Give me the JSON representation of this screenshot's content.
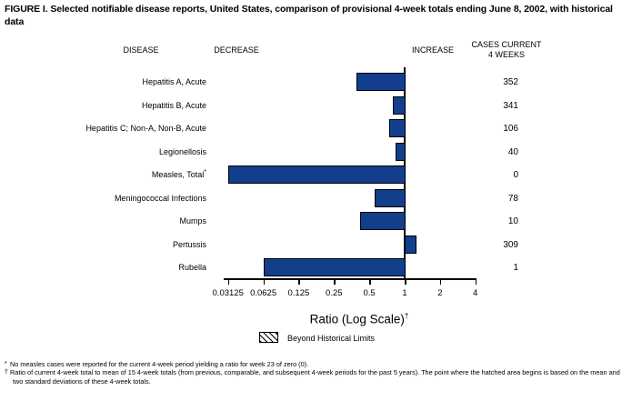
{
  "figure": {
    "title": "FIGURE I. Selected notifiable disease reports, United States, comparison of provisional 4-week totals ending June 8, 2002, with historical data"
  },
  "headers": {
    "disease": "DISEASE",
    "decrease": "DECREASE",
    "increase": "INCREASE",
    "cases_line1": "CASES CURRENT",
    "cases_line2": "4 WEEKS"
  },
  "chart_data": {
    "type": "bar",
    "orientation": "horizontal",
    "scale": "log2",
    "title": "FIGURE I. Selected notifiable disease reports, United States, comparison of provisional 4-week totals ending June 8, 2002, with historical data",
    "xlabel": "Ratio (Log Scale)",
    "xlabel_superscript": "†",
    "xlim": [
      0.03125,
      4
    ],
    "baseline": 1,
    "axis_ticks": [
      "0.03125",
      "0.0625",
      "0.125",
      "0.25",
      "0.5",
      "1",
      "2",
      "4"
    ],
    "bar_color": "#123e8c",
    "rows": [
      {
        "disease": "Hepatitis A, Acute",
        "superscript": "",
        "ratio": 0.39,
        "cases": "352"
      },
      {
        "disease": "Hepatitis B, Acute",
        "superscript": "",
        "ratio": 0.79,
        "cases": "341"
      },
      {
        "disease": "Hepatitis C; Non-A, Non-B, Acute",
        "superscript": "",
        "ratio": 0.74,
        "cases": "106"
      },
      {
        "disease": "Legionellosis",
        "superscript": "",
        "ratio": 0.84,
        "cases": "40"
      },
      {
        "disease": "Measles, Total",
        "superscript": "*",
        "ratio": 0,
        "cases": "0"
      },
      {
        "disease": "Meningococcal Infections",
        "superscript": "",
        "ratio": 0.55,
        "cases": "78"
      },
      {
        "disease": "Mumps",
        "superscript": "",
        "ratio": 0.42,
        "cases": "10"
      },
      {
        "disease": "Pertussis",
        "superscript": "",
        "ratio": 1.24,
        "cases": "309"
      },
      {
        "disease": "Rubella",
        "superscript": "",
        "ratio": 0.0625,
        "cases": "1"
      }
    ],
    "legend": [
      {
        "label": "Beyond Historical Limits",
        "swatch": "diagonal-hatch"
      }
    ]
  },
  "footnotes": [
    {
      "marker": "*",
      "text": "No measles cases were reported for the current 4-week period yielding a ratio for week 23 of zero (0)."
    },
    {
      "marker": "†",
      "text": "Ratio of current 4-week total to mean of 15 4-week totals (from previous, comparable, and subsequent 4-week periods for the past 5 years). The point where the hatched area begins is based on the mean and two standard deviations of these 4-week totals."
    }
  ]
}
